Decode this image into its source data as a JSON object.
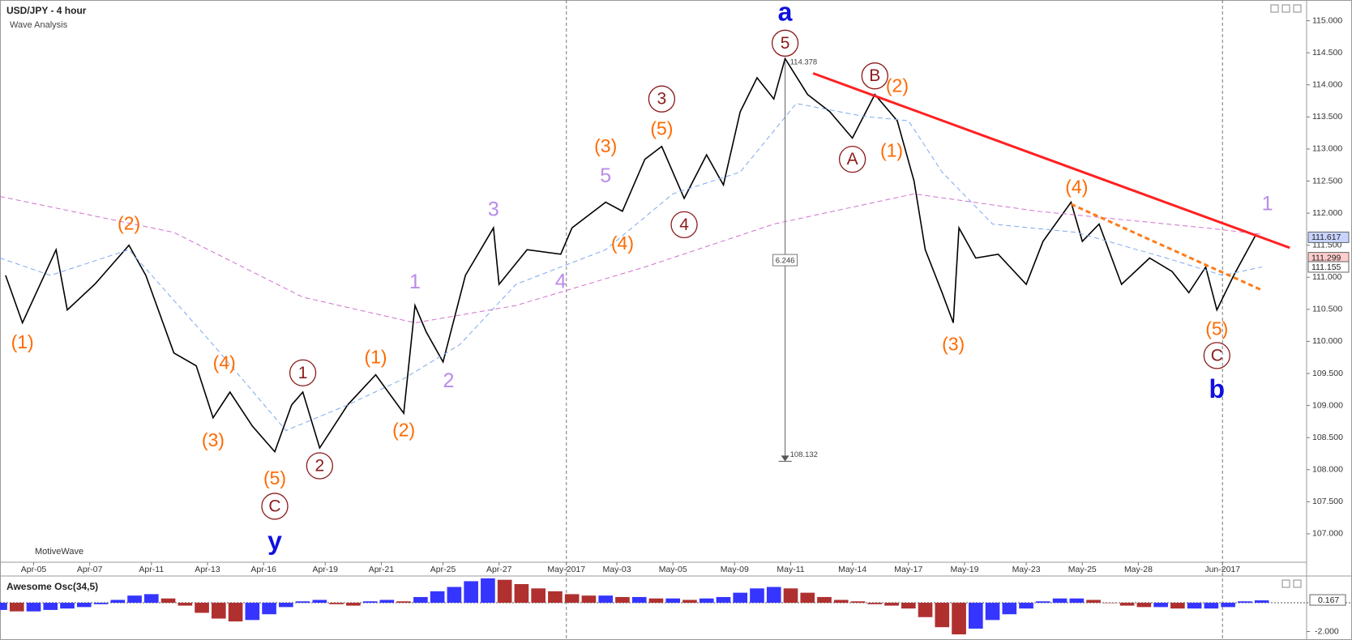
{
  "chart_data": [
    {
      "type": "line",
      "title": "USD/JPY - 4 hour",
      "subtitle": "Wave Analysis",
      "watermark": "MotiveWave",
      "xlim": [
        0,
        233
      ],
      "ylim": [
        106.57,
        115.26
      ],
      "xticks": [
        {
          "value": 6,
          "label": "Apr-05"
        },
        {
          "value": 16,
          "label": "Apr-07"
        },
        {
          "value": 27,
          "label": "Apr-11"
        },
        {
          "value": 37,
          "label": "Apr-13"
        },
        {
          "value": 47,
          "label": "Apr-16"
        },
        {
          "value": 58,
          "label": "Apr-19"
        },
        {
          "value": 68,
          "label": "Apr-21"
        },
        {
          "value": 79,
          "label": "Apr-25"
        },
        {
          "value": 89,
          "label": "Apr-27"
        },
        {
          "value": 101,
          "label": "May-2017"
        },
        {
          "value": 110,
          "label": "May-03"
        },
        {
          "value": 120,
          "label": "May-05"
        },
        {
          "value": 131,
          "label": "May-09"
        },
        {
          "value": 141,
          "label": "May-11"
        },
        {
          "value": 152,
          "label": "May-14"
        },
        {
          "value": 162,
          "label": "May-17"
        },
        {
          "value": 172,
          "label": "May-19"
        },
        {
          "value": 183,
          "label": "May-23"
        },
        {
          "value": 193,
          "label": "May-25"
        },
        {
          "value": 203,
          "label": "May-28"
        },
        {
          "value": 218,
          "label": "Jun-2017"
        }
      ],
      "yticks": [
        {
          "value": 107,
          "label": "107.000"
        },
        {
          "value": 107.5,
          "label": "107.500"
        },
        {
          "value": 108,
          "label": "108.000"
        },
        {
          "value": 108.5,
          "label": "108.500"
        },
        {
          "value": 109,
          "label": "109.000"
        },
        {
          "value": 109.5,
          "label": "109.500"
        },
        {
          "value": 110,
          "label": "110.000"
        },
        {
          "value": 110.5,
          "label": "110.500"
        },
        {
          "value": 111,
          "label": "111.000"
        },
        {
          "value": 111.5,
          "label": "111.500"
        },
        {
          "value": 112,
          "label": "112.000"
        },
        {
          "value": 112.5,
          "label": "112.500"
        },
        {
          "value": 113,
          "label": "113.000"
        },
        {
          "value": 113.5,
          "label": "113.500"
        },
        {
          "value": 114,
          "label": "114.000"
        },
        {
          "value": 114.5,
          "label": "114.500"
        },
        {
          "value": 115,
          "label": "115.000"
        }
      ],
      "separators": [
        101,
        218
      ],
      "series": [
        {
          "color": "#000000",
          "width": 1.6,
          "dash": false,
          "x": [
            1,
            4,
            10,
            12,
            17,
            23,
            26,
            31,
            35,
            38,
            41,
            45,
            49,
            52,
            54,
            57,
            62,
            67,
            72,
            74,
            76,
            79,
            83,
            88,
            89,
            94,
            100,
            102,
            108,
            111,
            115,
            118,
            122,
            126,
            129,
            132,
            135,
            138,
            140,
            144,
            148,
            152,
            156,
            160,
            163,
            165,
            168,
            170,
            171,
            174,
            178,
            183,
            186,
            191,
            193,
            196,
            200,
            205,
            209,
            212,
            215,
            217,
            220,
            224
          ],
          "values": [
            111.03,
            110.29,
            111.43,
            110.49,
            110.9,
            111.5,
            111.03,
            109.82,
            109.62,
            108.81,
            109.21,
            108.68,
            108.28,
            109.01,
            109.21,
            108.34,
            109.01,
            109.48,
            108.88,
            110.56,
            110.15,
            109.68,
            111.03,
            111.77,
            110.89,
            111.43,
            111.36,
            111.77,
            112.17,
            112.03,
            112.84,
            113.04,
            112.23,
            112.91,
            112.44,
            113.58,
            114.11,
            113.78,
            114.41,
            113.85,
            113.58,
            113.17,
            113.85,
            113.44,
            112.5,
            111.43,
            110.76,
            110.29,
            111.77,
            111.3,
            111.36,
            110.89,
            111.56,
            112.17,
            111.56,
            111.83,
            110.89,
            111.3,
            111.09,
            110.76,
            111.16,
            110.49,
            111.03,
            111.67
          ]
        },
        {
          "color": "#d070d0",
          "width": 1,
          "dash": true,
          "x": [
            0,
            31,
            54,
            74,
            92,
            115,
            138,
            163,
            185,
            215,
            225
          ],
          "values": [
            112.26,
            111.7,
            110.69,
            110.29,
            110.56,
            111.16,
            111.83,
            112.3,
            112.03,
            111.77,
            111.67
          ]
        },
        {
          "color": "#7fa8f0",
          "width": 1,
          "dash": true,
          "x": [
            0,
            9,
            23,
            38,
            51,
            62,
            72,
            82,
            92,
            108,
            120,
            132,
            142,
            154,
            162,
            168,
            177,
            192,
            208,
            218,
            225
          ],
          "values": [
            111.3,
            111.03,
            111.43,
            109.95,
            108.61,
            109.01,
            109.42,
            109.95,
            110.89,
            111.43,
            112.3,
            112.64,
            113.71,
            113.51,
            113.44,
            112.64,
            111.83,
            111.7,
            111.3,
            111.03,
            111.16
          ]
        },
        {
          "color": "#ff2020",
          "width": 3,
          "dash": false,
          "x": [
            145,
            230
          ],
          "values": [
            114.18,
            111.46
          ]
        },
        {
          "color": "#ff7a1a",
          "width": 3,
          "dash": true,
          "x": [
            191,
            225
          ],
          "values": [
            112.14,
            110.8
          ]
        }
      ],
      "measure": {
        "x": 140,
        "from": 114.378,
        "to": 108.132,
        "label": 6.246
      },
      "price_tags": [
        {
          "value": 111.617,
          "color": "#c8d4ff"
        },
        {
          "value": 111.299,
          "color": "#ffcccc"
        },
        {
          "value": 111.155,
          "color": "#ffffff"
        }
      ],
      "annotations": [
        {
          "text": "(1)",
          "x": 4,
          "y": 109.98,
          "style": "paren",
          "color": "#ff6a00"
        },
        {
          "text": "(2)",
          "x": 23,
          "y": 111.83,
          "style": "paren",
          "color": "#ff6a00"
        },
        {
          "text": "(3)",
          "x": 38,
          "y": 108.45,
          "style": "paren",
          "color": "#ff6a00"
        },
        {
          "text": "(4)",
          "x": 40,
          "y": 109.66,
          "style": "paren",
          "color": "#ff6a00"
        },
        {
          "text": "(5)",
          "x": 49,
          "y": 107.86,
          "style": "paren",
          "color": "#ff6a00"
        },
        {
          "text": "C",
          "x": 49,
          "y": 107.43,
          "style": "circle",
          "color": "#8b1a1a"
        },
        {
          "text": "y",
          "x": 49,
          "y": 106.87,
          "style": "degree",
          "color": "#1010e0"
        },
        {
          "text": "1",
          "x": 54,
          "y": 109.51,
          "style": "circle",
          "color": "#8b1a1a"
        },
        {
          "text": "2",
          "x": 57,
          "y": 108.06,
          "style": "circle",
          "color": "#8b1a1a"
        },
        {
          "text": "(1)",
          "x": 67,
          "y": 109.75,
          "style": "paren",
          "color": "#ff6a00"
        },
        {
          "text": "(2)",
          "x": 72,
          "y": 108.61,
          "style": "paren",
          "color": "#ff6a00"
        },
        {
          "text": "1",
          "x": 74,
          "y": 110.92,
          "style": "plain",
          "color": "#b98ce8"
        },
        {
          "text": "2",
          "x": 80,
          "y": 109.38,
          "style": "plain",
          "color": "#b98ce8"
        },
        {
          "text": "3",
          "x": 88,
          "y": 112.05,
          "style": "plain",
          "color": "#b98ce8"
        },
        {
          "text": "4",
          "x": 100,
          "y": 110.93,
          "style": "plain",
          "color": "#b98ce8"
        },
        {
          "text": "5",
          "x": 108,
          "y": 112.58,
          "style": "plain",
          "color": "#b98ce8"
        },
        {
          "text": "(3)",
          "x": 108,
          "y": 113.04,
          "style": "paren",
          "color": "#ff6a00"
        },
        {
          "text": "(4)",
          "x": 111,
          "y": 111.52,
          "style": "paren",
          "color": "#ff6a00"
        },
        {
          "text": "3",
          "x": 118,
          "y": 113.78,
          "style": "circle",
          "color": "#8b1a1a"
        },
        {
          "text": "(5)",
          "x": 118,
          "y": 113.31,
          "style": "paren",
          "color": "#ff6a00"
        },
        {
          "text": "4",
          "x": 122,
          "y": 111.82,
          "style": "circle",
          "color": "#8b1a1a"
        },
        {
          "text": "5",
          "x": 140,
          "y": 114.65,
          "style": "circle",
          "color": "#8b1a1a"
        },
        {
          "text": "a",
          "x": 140,
          "y": 115.12,
          "style": "degree",
          "color": "#1010e0"
        },
        {
          "text": "A",
          "x": 152,
          "y": 112.84,
          "style": "circle",
          "color": "#8b1a1a"
        },
        {
          "text": "B",
          "x": 156,
          "y": 114.14,
          "style": "circle",
          "color": "#8b1a1a"
        },
        {
          "text": "(2)",
          "x": 160,
          "y": 113.98,
          "style": "paren",
          "color": "#ff6a00"
        },
        {
          "text": "(1)",
          "x": 159,
          "y": 112.97,
          "style": "paren",
          "color": "#ff6a00"
        },
        {
          "text": "(3)",
          "x": 170,
          "y": 109.95,
          "style": "paren",
          "color": "#ff6a00"
        },
        {
          "text": "(4)",
          "x": 192,
          "y": 112.4,
          "style": "paren",
          "color": "#ff6a00"
        },
        {
          "text": "(5)",
          "x": 217,
          "y": 110.19,
          "style": "paren",
          "color": "#ff6a00"
        },
        {
          "text": "C",
          "x": 217,
          "y": 109.78,
          "style": "circle",
          "color": "#8b1a1a"
        },
        {
          "text": "b",
          "x": 217,
          "y": 109.24,
          "style": "degree",
          "color": "#1010e0"
        },
        {
          "text": "1",
          "x": 226,
          "y": 112.14,
          "style": "plain",
          "color": "#b98ce8"
        }
      ]
    },
    {
      "type": "bar",
      "title": "Awesome Osc(34,5)",
      "xlim": [
        0,
        233
      ],
      "ylim": [
        -2.31,
        1.75
      ],
      "yticks": [
        {
          "value": -2,
          "label": "-2.000"
        }
      ],
      "last_value": 0.167,
      "up_color": "#3535ff",
      "down_color": "#b03030",
      "x": [
        0,
        3,
        6,
        9,
        12,
        15,
        18,
        21,
        24,
        27,
        30,
        33,
        36,
        39,
        42,
        45,
        48,
        51,
        54,
        57,
        60,
        63,
        66,
        69,
        72,
        75,
        78,
        81,
        84,
        87,
        90,
        93,
        96,
        99,
        102,
        105,
        108,
        111,
        114,
        117,
        120,
        123,
        126,
        129,
        132,
        135,
        138,
        141,
        144,
        147,
        150,
        153,
        156,
        159,
        162,
        165,
        168,
        171,
        174,
        177,
        180,
        183,
        186,
        189,
        192,
        195,
        198,
        201,
        204,
        207,
        210,
        213,
        216,
        219,
        222,
        225
      ],
      "values": [
        -0.5,
        -0.6,
        -0.6,
        -0.5,
        -0.4,
        -0.3,
        -0.1,
        0.2,
        0.5,
        0.6,
        0.3,
        -0.2,
        -0.7,
        -1.1,
        -1.3,
        -1.2,
        -0.8,
        -0.3,
        0.1,
        0.2,
        -0.1,
        -0.2,
        0.1,
        0.2,
        0.1,
        0.4,
        0.8,
        1.1,
        1.5,
        1.7,
        1.6,
        1.3,
        1.0,
        0.8,
        0.6,
        0.5,
        0.5,
        0.4,
        0.4,
        0.3,
        0.3,
        0.2,
        0.3,
        0.4,
        0.7,
        1.0,
        1.1,
        1.0,
        0.7,
        0.4,
        0.2,
        0.1,
        -0.1,
        -0.2,
        -0.4,
        -1.0,
        -1.7,
        -2.2,
        -1.8,
        -1.2,
        -0.8,
        -0.4,
        0.1,
        0.3,
        0.3,
        0.2,
        0.0,
        -0.2,
        -0.3,
        -0.3,
        -0.4,
        -0.4,
        -0.4,
        -0.3,
        0.1,
        0.167
      ]
    }
  ]
}
